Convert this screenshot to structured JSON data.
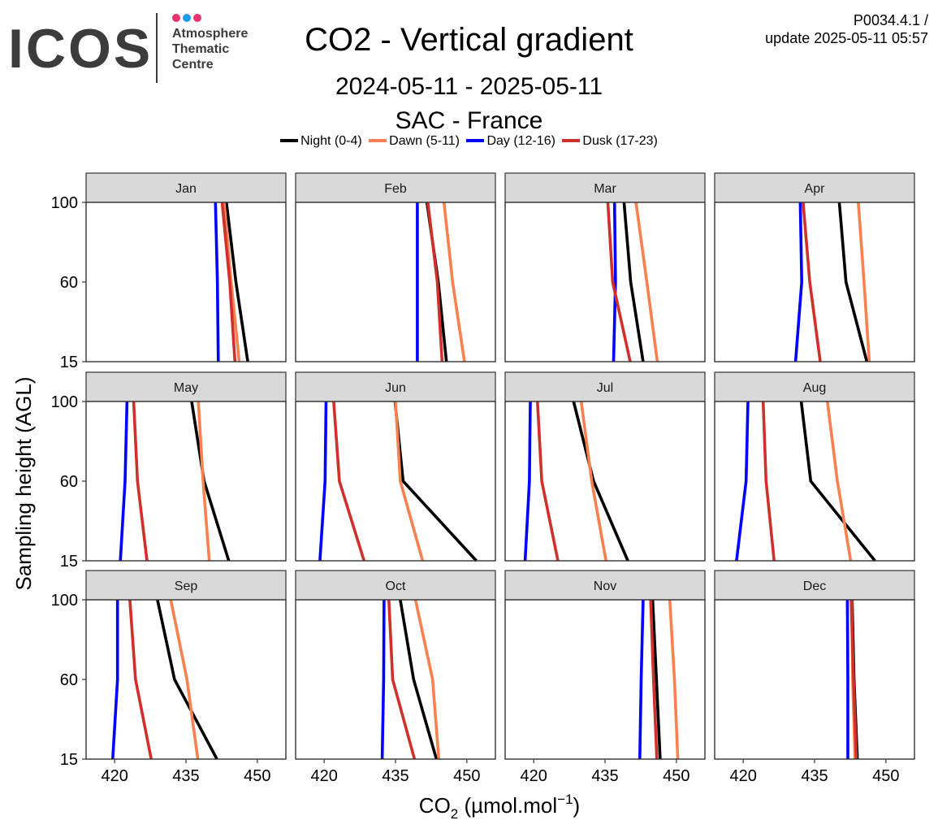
{
  "header": {
    "logo_text": "ICOS",
    "logo_sub": [
      "Atmosphere",
      "Thematic",
      "Centre"
    ],
    "logo_dot_colors": [
      "#e8336d",
      "#1e9be9",
      "#e8336d"
    ],
    "title": "CO2 - Vertical gradient",
    "meta_line1": "P0034.4.1 /",
    "meta_line2": "update  2025-05-11 05:57",
    "date_range": "2024-05-11 - 2025-05-11",
    "site": "SAC - France"
  },
  "chart_data": {
    "type": "line",
    "xlabel": "CO2 (µmol.mol−1)",
    "ylabel": "Sampling height (AGL)",
    "xlim": [
      414,
      456
    ],
    "xticks": [
      420,
      435,
      450
    ],
    "yticks": [
      15,
      60,
      100
    ],
    "legend_position": "top",
    "series": [
      {
        "name": "Night (0-4)",
        "color": "#000000"
      },
      {
        "name": "Dawn (5-11)",
        "color": "#fa8050"
      },
      {
        "name": "Day (12-16)",
        "color": "#0000ff"
      },
      {
        "name": "Dusk (17-23)",
        "color": "#d0302c"
      }
    ],
    "heights": [
      15,
      60,
      100
    ],
    "panels": [
      {
        "month": "Jan",
        "values": [
          [
            448.0,
            445.5,
            443.5
          ],
          [
            446.2,
            444.5,
            443.0
          ],
          [
            441.8,
            441.6,
            441.2
          ],
          [
            445.3,
            444.2,
            442.6
          ]
        ]
      },
      {
        "month": "Feb",
        "values": [
          [
            445.7,
            444.0,
            441.6
          ],
          [
            449.5,
            447.0,
            445.2
          ],
          [
            439.6,
            439.6,
            439.6
          ],
          [
            444.8,
            443.8,
            441.8
          ]
        ]
      },
      {
        "month": "Mar",
        "values": [
          [
            443.0,
            440.4,
            439.0
          ],
          [
            446.0,
            443.8,
            441.5
          ],
          [
            436.8,
            437.2,
            437.0
          ],
          [
            440.3,
            436.6,
            435.6
          ]
        ]
      },
      {
        "month": "Apr",
        "values": [
          [
            446.0,
            441.6,
            440.2
          ],
          [
            446.5,
            445.4,
            444.2
          ],
          [
            431.0,
            432.3,
            432.0
          ],
          [
            436.2,
            434.0,
            432.6
          ]
        ]
      },
      {
        "month": "May",
        "values": [
          [
            444.0,
            438.8,
            436.2
          ],
          [
            439.9,
            438.6,
            437.6
          ],
          [
            421.2,
            422.2,
            422.6
          ],
          [
            426.8,
            424.8,
            424.0
          ]
        ]
      },
      {
        "month": "Jun",
        "values": [
          [
            452.0,
            436.6,
            434.9
          ],
          [
            440.7,
            436.0,
            435.0
          ],
          [
            419.1,
            420.2,
            420.4
          ],
          [
            428.4,
            423.2,
            422.0
          ]
        ]
      },
      {
        "month": "Jul",
        "values": [
          [
            439.8,
            432.6,
            428.4
          ],
          [
            435.2,
            432.2,
            430.0
          ],
          [
            418.2,
            419.1,
            419.3
          ],
          [
            425.1,
            421.7,
            420.8
          ]
        ]
      },
      {
        "month": "Aug",
        "values": [
          [
            447.7,
            434.2,
            432.2
          ],
          [
            442.6,
            439.8,
            437.7
          ],
          [
            418.6,
            420.6,
            421.0
          ],
          [
            426.5,
            424.8,
            424.2
          ]
        ]
      },
      {
        "month": "Sep",
        "values": [
          [
            441.5,
            432.6,
            429.0
          ],
          [
            437.5,
            435.2,
            431.8
          ],
          [
            419.6,
            420.6,
            420.6
          ],
          [
            427.7,
            424.4,
            423.2
          ]
        ]
      },
      {
        "month": "Oct",
        "values": [
          [
            443.6,
            438.8,
            436.0
          ],
          [
            444.1,
            442.8,
            439.2
          ],
          [
            432.2,
            432.5,
            432.6
          ],
          [
            439.0,
            434.4,
            433.6
          ]
        ]
      },
      {
        "month": "Nov",
        "values": [
          [
            446.6,
            445.8,
            445.0
          ],
          [
            450.3,
            449.6,
            448.6
          ],
          [
            442.3,
            442.6,
            443.0
          ],
          [
            445.9,
            445.2,
            444.6
          ]
        ]
      },
      {
        "month": "Dec",
        "values": [
          [
            444.0,
            443.3,
            442.9
          ],
          [
            443.5,
            443.0,
            442.8
          ],
          [
            442.0,
            442.0,
            441.9
          ],
          [
            443.8,
            443.2,
            442.7
          ]
        ]
      }
    ]
  }
}
